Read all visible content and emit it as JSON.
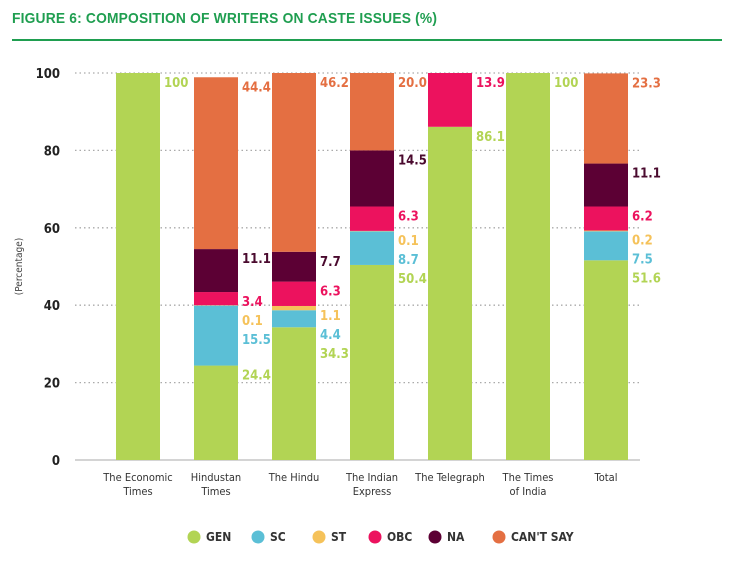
{
  "chart_data": {
    "type": "bar",
    "stacked": true,
    "title": "FIGURE 6: COMPOSITION OF WRITERS ON CASTE ISSUES (%)",
    "ylabel": "(Percentage)",
    "xlabel": "",
    "ylim": [
      0,
      100
    ],
    "yticks": [
      0,
      20,
      40,
      60,
      80,
      100
    ],
    "grid": true,
    "legend_position": "bottom",
    "categories": [
      [
        "The Economic",
        "Times"
      ],
      [
        "Hindustan",
        "Times"
      ],
      [
        "The Hindu"
      ],
      [
        "The Indian",
        "Express"
      ],
      [
        "The Telegraph"
      ],
      [
        "The Times",
        "of India"
      ],
      [
        "Total"
      ]
    ],
    "series": [
      {
        "name": "GEN",
        "color": "#b2d454",
        "label_color": "#b2d454",
        "values": [
          100,
          24.4,
          34.3,
          50.4,
          86.1,
          100,
          51.6
        ]
      },
      {
        "name": "SC",
        "color": "#5bbfd6",
        "label_color": "#5bbfd6",
        "values": [
          null,
          15.5,
          4.4,
          8.7,
          null,
          null,
          7.5
        ]
      },
      {
        "name": "ST",
        "color": "#f5c25a",
        "label_color": "#f5c25a",
        "values": [
          null,
          0.1,
          1.1,
          0.1,
          null,
          null,
          0.2
        ]
      },
      {
        "name": "OBC",
        "color": "#ec125e",
        "label_color": "#ec125e",
        "values": [
          null,
          3.4,
          6.3,
          6.3,
          13.9,
          null,
          6.2
        ]
      },
      {
        "name": "NA",
        "color": "#5c0034",
        "label_color": "#4a0a2e",
        "values": [
          null,
          11.1,
          7.7,
          14.5,
          null,
          null,
          11.1
        ]
      },
      {
        "name": "CAN'T SAY",
        "color": "#e46f42",
        "label_color": "#e46f42",
        "values": [
          null,
          44.4,
          46.2,
          20.0,
          null,
          null,
          23.3
        ]
      }
    ]
  }
}
